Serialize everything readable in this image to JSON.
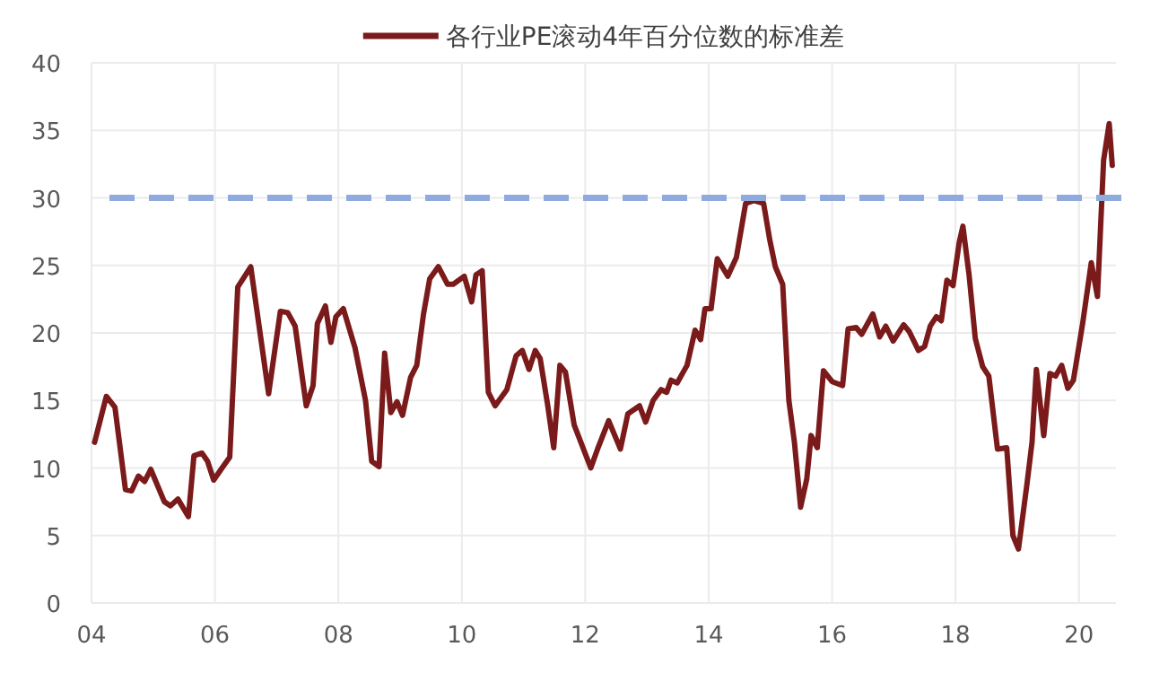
{
  "chart_data": {
    "type": "line",
    "x": [
      2004.05,
      2004.24,
      2004.38,
      2004.55,
      2004.65,
      2004.76,
      2004.86,
      2004.96,
      2005.18,
      2005.28,
      2005.4,
      2005.57,
      2005.66,
      2005.79,
      2005.88,
      2005.98,
      2006.1,
      2006.24,
      2006.37,
      2006.58,
      2006.87,
      2007.06,
      2007.18,
      2007.3,
      2007.48,
      2007.59,
      2007.66,
      2007.79,
      2007.88,
      2007.96,
      2008.08,
      2008.27,
      2008.44,
      2008.54,
      2008.66,
      2008.75,
      2008.85,
      2008.95,
      2009.04,
      2009.17,
      2009.27,
      2009.38,
      2009.48,
      2009.62,
      2009.77,
      2009.86,
      2010.04,
      2010.16,
      2010.23,
      2010.33,
      2010.43,
      2010.54,
      2010.73,
      2010.88,
      2010.98,
      2011.09,
      2011.19,
      2011.27,
      2011.39,
      2011.49,
      2011.59,
      2011.68,
      2011.82,
      2012.09,
      2012.2,
      2012.38,
      2012.57,
      2012.69,
      2012.88,
      2012.98,
      2013.1,
      2013.23,
      2013.32,
      2013.39,
      2013.49,
      2013.65,
      2013.78,
      2013.87,
      2013.94,
      2014.04,
      2014.14,
      2014.31,
      2014.45,
      2014.6,
      2014.74,
      2014.89,
      2014.99,
      2015.08,
      2015.2,
      2015.3,
      2015.39,
      2015.49,
      2015.59,
      2015.66,
      2015.76,
      2015.86,
      2016.0,
      2016.17,
      2016.26,
      2016.39,
      2016.48,
      2016.66,
      2016.77,
      2016.87,
      2016.99,
      2017.16,
      2017.25,
      2017.4,
      2017.5,
      2017.59,
      2017.69,
      2017.77,
      2017.86,
      2017.96,
      2018.06,
      2018.12,
      2018.22,
      2018.32,
      2018.44,
      2018.54,
      2018.68,
      2018.83,
      2018.93,
      2019.02,
      2019.16,
      2019.24,
      2019.31,
      2019.43,
      2019.53,
      2019.62,
      2019.72,
      2019.82,
      2019.91,
      2020.06,
      2020.2,
      2020.3,
      2020.4,
      2020.49,
      2020.54
    ],
    "series": [
      {
        "name": "各行业PE滚动4年百分位数的标准差",
        "color": "#7b1a1a",
        "values": [
          11.9,
          15.3,
          14.5,
          8.4,
          8.3,
          9.4,
          9.0,
          9.9,
          7.5,
          7.2,
          7.7,
          6.4,
          10.9,
          11.1,
          10.5,
          9.1,
          9.9,
          10.8,
          23.4,
          24.9,
          15.5,
          21.6,
          21.5,
          20.5,
          14.6,
          16.1,
          20.7,
          22.0,
          19.3,
          21.2,
          21.8,
          18.9,
          15.0,
          10.5,
          10.1,
          18.5,
          14.1,
          14.9,
          13.9,
          16.7,
          17.6,
          21.4,
          24.0,
          24.9,
          23.6,
          23.6,
          24.2,
          22.3,
          24.3,
          24.6,
          15.6,
          14.6,
          15.8,
          18.3,
          18.7,
          17.3,
          18.7,
          18.1,
          14.7,
          11.5,
          17.6,
          17.1,
          13.2,
          10.0,
          11.4,
          13.5,
          11.4,
          14.0,
          14.6,
          13.4,
          15.0,
          15.8,
          15.6,
          16.5,
          16.3,
          17.6,
          20.2,
          19.5,
          21.8,
          21.8,
          25.5,
          24.2,
          25.6,
          29.6,
          29.8,
          29.6,
          26.9,
          24.9,
          23.6,
          15.0,
          11.9,
          7.1,
          9.2,
          12.4,
          11.5,
          17.2,
          16.4,
          16.1,
          20.3,
          20.4,
          19.9,
          21.4,
          19.7,
          20.5,
          19.4,
          20.6,
          20.1,
          18.7,
          19.0,
          20.5,
          21.2,
          20.9,
          23.9,
          23.5,
          26.7,
          27.9,
          24.3,
          19.6,
          17.5,
          16.8,
          11.4,
          11.5,
          5.0,
          4.0,
          8.9,
          11.9,
          17.3,
          12.4,
          17.0,
          16.8,
          17.6,
          15.9,
          16.5,
          20.7,
          25.2,
          22.7,
          32.8,
          35.5,
          32.4
        ]
      }
    ],
    "xlim": [
      2004,
      2020.6
    ],
    "xticks": [
      {
        "value": 2004,
        "label": "04"
      },
      {
        "value": 2006,
        "label": "06"
      },
      {
        "value": 2008,
        "label": "08"
      },
      {
        "value": 2010,
        "label": "10"
      },
      {
        "value": 2012,
        "label": "12"
      },
      {
        "value": 2014,
        "label": "14"
      },
      {
        "value": 2016,
        "label": "16"
      },
      {
        "value": 2018,
        "label": "18"
      },
      {
        "value": 2020,
        "label": "20"
      }
    ],
    "ylim": [
      0,
      40
    ],
    "yticks": [
      0,
      5,
      10,
      15,
      20,
      25,
      30,
      35,
      40
    ],
    "grid": true,
    "legend": "top",
    "line_style": "solid",
    "ref_lines": [
      {
        "axis": "y",
        "value": 30,
        "color": "#8faadc",
        "line_style": "dashed"
      }
    ]
  }
}
